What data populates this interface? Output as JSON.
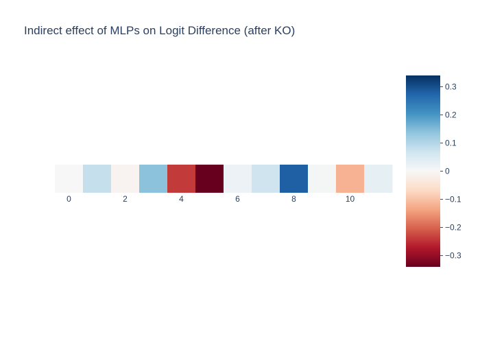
{
  "chart_data": {
    "type": "heatmap",
    "title": "Indirect effect of MLPs on Logit Difference (after KO)",
    "xlabel": "",
    "ylabel": "",
    "x": [
      0,
      1,
      2,
      3,
      4,
      5,
      6,
      7,
      8,
      9,
      10,
      11
    ],
    "x_tick_labels": [
      "0",
      "2",
      "4",
      "6",
      "8",
      "10"
    ],
    "x_tick_values": [
      0,
      2,
      4,
      6,
      8,
      10
    ],
    "values": [
      0.0,
      0.08,
      -0.01,
      0.14,
      -0.24,
      -0.34,
      0.02,
      0.07,
      0.28,
      0.005,
      -0.12,
      0.03
    ],
    "colorscale": "RdBu",
    "zmin": -0.34,
    "zmax": 0.34,
    "colorbar": {
      "tick_values": [
        0.3,
        0.2,
        0.1,
        0,
        -0.1,
        -0.2,
        -0.3
      ],
      "tick_labels": [
        "0.3",
        "0.2",
        "0.1",
        "0",
        "−0.1",
        "−0.2",
        "−0.3"
      ]
    },
    "colors": {
      "title": "#2a3f5f",
      "tick": "#2a3f5f",
      "background": "#ffffff"
    }
  }
}
